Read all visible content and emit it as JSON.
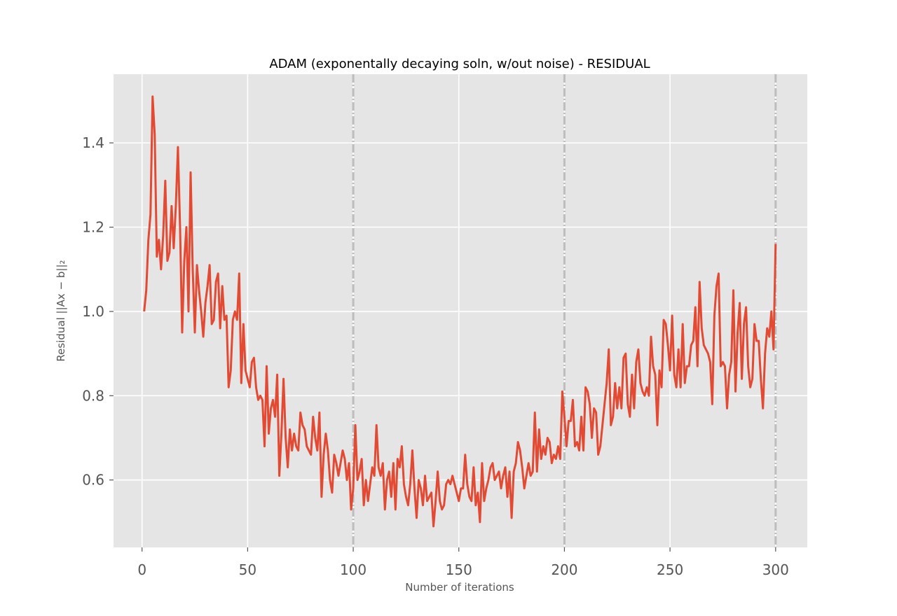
{
  "chart_data": {
    "type": "line",
    "title": "ADAM (exponentally decaying soln, w/out noise) - RESIDUAL",
    "xlabel": "Number of iterations",
    "ylabel": "Residual ||Ax − b||₂",
    "xlim": [
      -13.5,
      315
    ],
    "ylim": [
      0.44,
      1.563
    ],
    "xticks": [
      0,
      50,
      100,
      150,
      200,
      250,
      300
    ],
    "xtick_labels": [
      "0",
      "50",
      "100",
      "150",
      "200",
      "250",
      "300"
    ],
    "yticks": [
      0.6,
      0.8,
      1.0,
      1.2,
      1.4
    ],
    "ytick_labels": [
      "0.6",
      "0.8",
      "1.0",
      "1.2",
      "1.4"
    ],
    "grid": true,
    "legend": "none",
    "vertical_lines": [
      100,
      200,
      300
    ],
    "colors": {
      "series": "#E24A33",
      "plot_background": "#E5E5E5",
      "grid": "#FFFFFF",
      "vertical_lines": "#BDBDBD"
    },
    "series": [
      {
        "x": [
          1,
          2,
          3,
          4,
          5,
          6,
          7,
          8,
          9,
          10,
          11,
          12,
          13,
          14,
          15,
          16,
          17,
          18,
          19,
          20,
          21,
          22,
          23,
          24,
          25,
          26,
          27,
          28,
          29,
          30,
          31,
          32,
          33,
          34,
          35,
          36,
          37,
          38,
          39,
          40,
          41,
          42,
          43,
          44,
          45,
          46,
          47,
          48,
          49,
          50,
          51,
          52,
          53,
          54,
          55,
          56,
          57,
          58,
          59,
          60,
          61,
          62,
          63,
          64,
          65,
          66,
          67,
          68,
          69,
          70,
          71,
          72,
          73,
          74,
          75,
          76,
          77,
          78,
          79,
          80,
          81,
          82,
          83,
          84,
          85,
          86,
          87,
          88,
          89,
          90,
          91,
          92,
          93,
          94,
          95,
          96,
          97,
          98,
          99,
          100,
          101,
          102,
          103,
          104,
          105,
          106,
          107,
          108,
          109,
          110,
          111,
          112,
          113,
          114,
          115,
          116,
          117,
          118,
          119,
          120,
          121,
          122,
          123,
          124,
          125,
          126,
          127,
          128,
          129,
          130,
          131,
          132,
          133,
          134,
          135,
          136,
          137,
          138,
          139,
          140,
          141,
          142,
          143,
          144,
          145,
          146,
          147,
          148,
          149,
          150,
          151,
          152,
          153,
          154,
          155,
          156,
          157,
          158,
          159,
          160,
          161,
          162,
          163,
          164,
          165,
          166,
          167,
          168,
          169,
          170,
          171,
          172,
          173,
          174,
          175,
          176,
          177,
          178,
          179,
          180,
          181,
          182,
          183,
          184,
          185,
          186,
          187,
          188,
          189,
          190,
          191,
          192,
          193,
          194,
          195,
          196,
          197,
          198,
          199,
          200,
          201,
          202,
          203,
          204,
          205,
          206,
          207,
          208,
          209,
          210,
          211,
          212,
          213,
          214,
          215,
          216,
          217,
          218,
          219,
          220,
          221,
          222,
          223,
          224,
          225,
          226,
          227,
          228,
          229,
          230,
          231,
          232,
          233,
          234,
          235,
          236,
          237,
          238,
          239,
          240,
          241,
          242,
          243,
          244,
          245,
          246,
          247,
          248,
          249,
          250,
          251,
          252,
          253,
          254,
          255,
          256,
          257,
          258,
          259,
          260,
          261,
          262,
          263,
          264,
          265,
          266,
          267,
          268,
          269,
          270,
          271,
          272,
          273,
          274,
          275,
          276,
          277,
          278,
          279,
          280,
          281,
          282,
          283,
          284,
          285,
          286,
          287,
          288,
          289,
          290,
          291,
          292,
          293,
          294,
          295,
          296,
          297,
          298,
          299,
          300
        ],
        "values": [
          1.0,
          1.05,
          1.17,
          1.23,
          1.51,
          1.42,
          1.13,
          1.17,
          1.1,
          1.18,
          1.31,
          1.12,
          1.14,
          1.25,
          1.15,
          1.25,
          1.39,
          1.2,
          0.95,
          1.12,
          1.2,
          1.0,
          1.33,
          1.1,
          0.95,
          1.11,
          1.05,
          1.0,
          0.94,
          1.02,
          1.06,
          1.11,
          0.97,
          0.98,
          1.07,
          1.09,
          0.96,
          1.06,
          0.98,
          0.99,
          0.82,
          0.86,
          0.98,
          1.0,
          0.98,
          1.09,
          0.83,
          0.97,
          0.86,
          0.84,
          0.82,
          0.88,
          0.89,
          0.82,
          0.79,
          0.8,
          0.79,
          0.68,
          0.87,
          0.71,
          0.77,
          0.79,
          0.75,
          0.85,
          0.61,
          0.71,
          0.84,
          0.7,
          0.63,
          0.72,
          0.67,
          0.71,
          0.68,
          0.67,
          0.76,
          0.73,
          0.72,
          0.68,
          0.67,
          0.66,
          0.75,
          0.7,
          0.67,
          0.76,
          0.56,
          0.66,
          0.71,
          0.67,
          0.6,
          0.57,
          0.66,
          0.64,
          0.61,
          0.64,
          0.67,
          0.65,
          0.6,
          0.64,
          0.53,
          0.58,
          0.73,
          0.6,
          0.62,
          0.65,
          0.54,
          0.6,
          0.55,
          0.59,
          0.63,
          0.61,
          0.73,
          0.63,
          0.61,
          0.64,
          0.53,
          0.6,
          0.62,
          0.56,
          0.64,
          0.53,
          0.65,
          0.63,
          0.68,
          0.59,
          0.56,
          0.54,
          0.59,
          0.67,
          0.58,
          0.51,
          0.6,
          0.58,
          0.54,
          0.61,
          0.55,
          0.56,
          0.57,
          0.49,
          0.55,
          0.62,
          0.55,
          0.53,
          0.54,
          0.59,
          0.6,
          0.59,
          0.61,
          0.59,
          0.57,
          0.55,
          0.58,
          0.58,
          0.66,
          0.59,
          0.56,
          0.55,
          0.63,
          0.54,
          0.57,
          0.5,
          0.64,
          0.55,
          0.58,
          0.6,
          0.63,
          0.64,
          0.6,
          0.61,
          0.62,
          0.58,
          0.61,
          0.63,
          0.56,
          0.62,
          0.51,
          0.62,
          0.64,
          0.69,
          0.67,
          0.63,
          0.58,
          0.61,
          0.64,
          0.61,
          0.62,
          0.76,
          0.62,
          0.72,
          0.65,
          0.68,
          0.66,
          0.7,
          0.69,
          0.64,
          0.66,
          0.65,
          0.68,
          0.65,
          0.81,
          0.75,
          0.68,
          0.74,
          0.74,
          0.79,
          0.68,
          0.69,
          0.67,
          0.75,
          0.67,
          0.82,
          0.81,
          0.78,
          0.7,
          0.77,
          0.76,
          0.66,
          0.68,
          0.73,
          0.78,
          0.83,
          0.91,
          0.73,
          0.75,
          0.83,
          0.77,
          0.82,
          0.77,
          0.89,
          0.9,
          0.78,
          0.75,
          0.85,
          0.77,
          0.88,
          0.91,
          0.83,
          0.81,
          0.8,
          0.82,
          0.8,
          0.94,
          0.87,
          0.85,
          0.73,
          0.86,
          0.82,
          0.98,
          0.97,
          0.92,
          0.86,
          0.99,
          0.85,
          0.82,
          0.91,
          0.82,
          0.97,
          0.83,
          0.87,
          0.87,
          0.92,
          0.93,
          1.01,
          0.87,
          1.07,
          0.96,
          0.92,
          0.91,
          0.9,
          0.88,
          0.78,
          0.99,
          1.06,
          1.09,
          0.87,
          0.88,
          0.87,
          0.77,
          0.85,
          0.88,
          1.05,
          0.81,
          0.95,
          1.02,
          0.84,
          0.97,
          1.01,
          0.87,
          0.82,
          0.84,
          0.97,
          0.93,
          0.93,
          0.84,
          0.77,
          0.9,
          0.96,
          0.94,
          1.0,
          0.91,
          1.16
        ]
      }
    ]
  }
}
